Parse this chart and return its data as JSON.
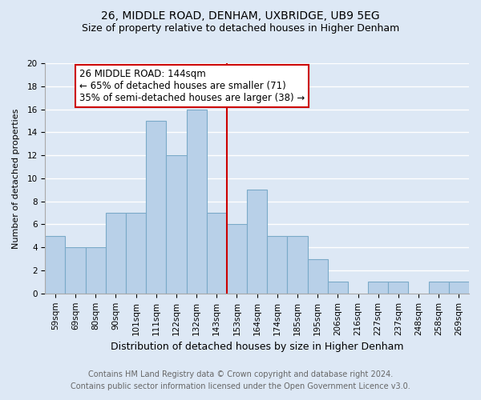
{
  "title": "26, MIDDLE ROAD, DENHAM, UXBRIDGE, UB9 5EG",
  "subtitle": "Size of property relative to detached houses in Higher Denham",
  "xlabel": "Distribution of detached houses by size in Higher Denham",
  "ylabel": "Number of detached properties",
  "bar_labels": [
    "59sqm",
    "69sqm",
    "80sqm",
    "90sqm",
    "101sqm",
    "111sqm",
    "122sqm",
    "132sqm",
    "143sqm",
    "153sqm",
    "164sqm",
    "174sqm",
    "185sqm",
    "195sqm",
    "206sqm",
    "216sqm",
    "227sqm",
    "237sqm",
    "248sqm",
    "258sqm",
    "269sqm"
  ],
  "bar_values": [
    5,
    4,
    4,
    7,
    7,
    15,
    12,
    16,
    7,
    6,
    9,
    5,
    5,
    3,
    1,
    0,
    1,
    1,
    0,
    1,
    1
  ],
  "bar_color": "#b8d0e8",
  "bar_edge_color": "#7aaac8",
  "reference_line_x": 8.5,
  "reference_line_color": "#cc0000",
  "annotation_title": "26 MIDDLE ROAD: 144sqm",
  "annotation_line1": "← 65% of detached houses are smaller (71)",
  "annotation_line2": "35% of semi-detached houses are larger (38) →",
  "annotation_box_edge_color": "#cc0000",
  "annotation_box_face_color": "#ffffff",
  "ylim": [
    0,
    20
  ],
  "yticks": [
    0,
    2,
    4,
    6,
    8,
    10,
    12,
    14,
    16,
    18,
    20
  ],
  "footer_line1": "Contains HM Land Registry data © Crown copyright and database right 2024.",
  "footer_line2": "Contains public sector information licensed under the Open Government Licence v3.0.",
  "bg_color": "#dde8f5",
  "plot_bg_color": "#dde8f5",
  "grid_color": "#ffffff",
  "title_fontsize": 10,
  "subtitle_fontsize": 9,
  "xlabel_fontsize": 9,
  "ylabel_fontsize": 8,
  "tick_fontsize": 7.5,
  "footer_fontsize": 7,
  "annotation_fontsize": 8.5
}
